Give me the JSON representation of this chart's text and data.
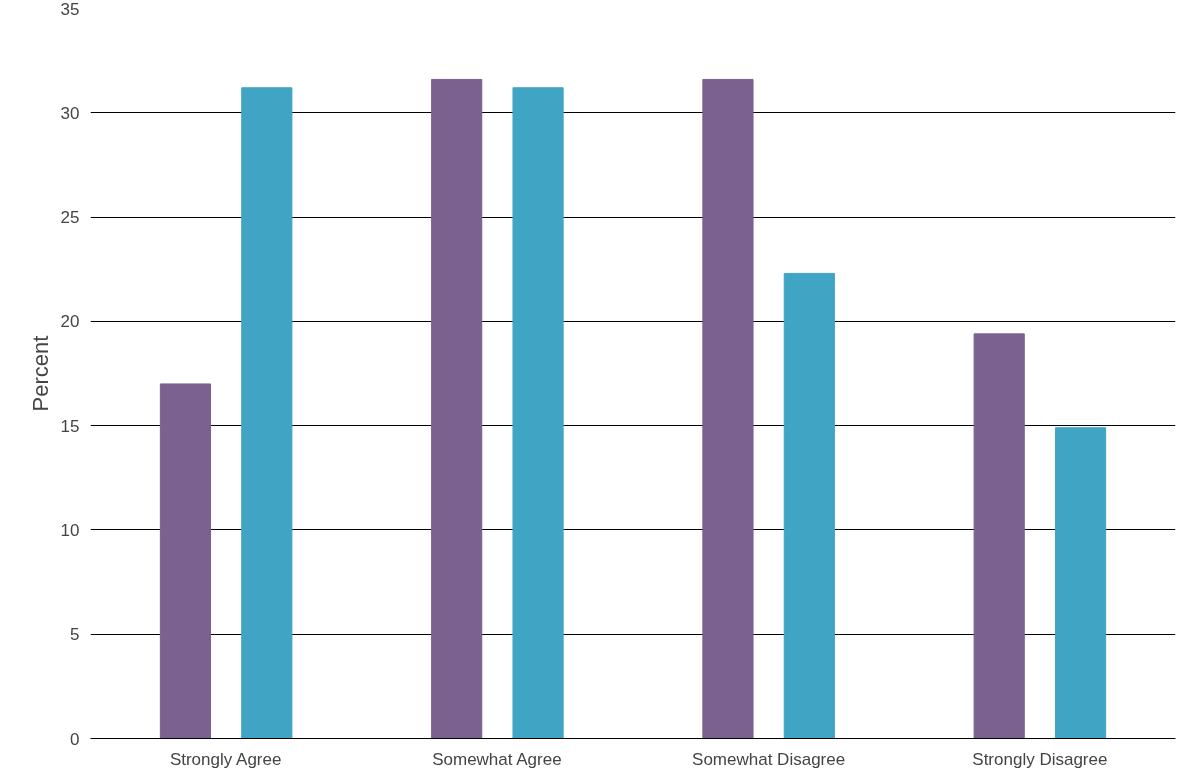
{
  "chart_data": {
    "type": "bar",
    "ylabel": "Percent",
    "categories": [
      "Strongly Agree",
      "Somewhat Agree",
      "Somewhat Disagree",
      "Strongly Disagree"
    ],
    "series": [
      {
        "color": "#7b618f",
        "values": [
          17.0,
          31.6,
          31.6,
          19.4
        ]
      },
      {
        "color": "#40a4c4",
        "values": [
          31.2,
          31.2,
          22.3,
          14.9
        ]
      }
    ],
    "ylim": [
      0,
      35
    ],
    "yticks": [
      0,
      5,
      10,
      15,
      20,
      25,
      30,
      35
    ],
    "grid": "y"
  }
}
